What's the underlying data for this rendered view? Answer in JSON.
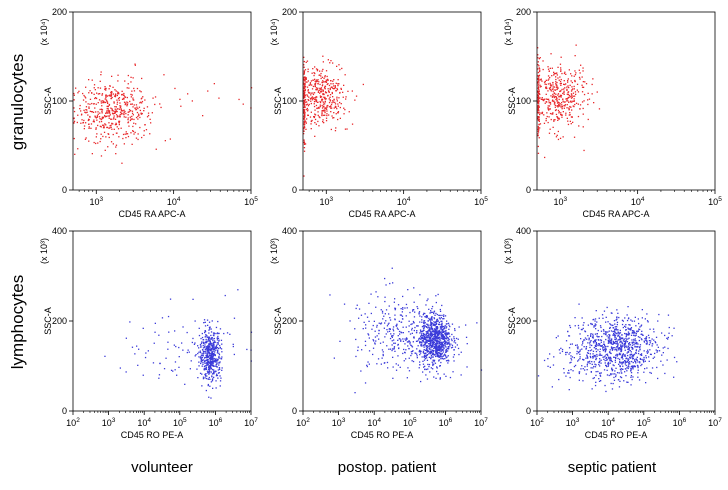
{
  "row_labels": [
    "granulocytes",
    "lymphocytes"
  ],
  "column_labels": [
    "volunteer",
    "postop. patient",
    "septic patient"
  ],
  "colors": {
    "granulocytes": "#e8272a",
    "lymphocytes": "#3b3bd9"
  },
  "chart_data": [
    {
      "type": "scatter",
      "row": 0,
      "col": 0,
      "xlabel": "CD45 RA APC-A",
      "ylabel": "SSC-A",
      "y_multiplier": "(x 10⁴)",
      "x_scale": "log",
      "xlim": [
        500,
        100000
      ],
      "xticks": [
        1000,
        10000,
        100000
      ],
      "ylim": [
        0,
        200
      ],
      "yticks": [
        0,
        100,
        200
      ],
      "color": "#e8272a",
      "clusters": [
        {
          "x_center": 1600,
          "y_center": 90,
          "x_spread_decades": 0.25,
          "y_spread": 17,
          "n": 480
        },
        {
          "x_center": 15000,
          "y_center": 100,
          "x_spread_decades": 0.5,
          "y_spread": 20,
          "n": 22
        }
      ]
    },
    {
      "type": "scatter",
      "row": 0,
      "col": 1,
      "xlabel": "CD45 RA APC-A",
      "ylabel": "SSC-A",
      "y_multiplier": "(x 10⁴)",
      "x_scale": "log",
      "xlim": [
        500,
        100000
      ],
      "xticks": [
        1000,
        10000,
        100000
      ],
      "ylim": [
        0,
        200
      ],
      "yticks": [
        0,
        100,
        200
      ],
      "color": "#e8272a",
      "clusters": [
        {
          "x_center": 800,
          "y_center": 105,
          "x_spread_decades": 0.18,
          "y_spread": 18,
          "n": 420
        },
        {
          "x_center": 510,
          "y_center": 95,
          "x_spread_decades": 0.01,
          "y_spread": 25,
          "n": 70
        }
      ]
    },
    {
      "type": "scatter",
      "row": 0,
      "col": 2,
      "xlabel": "CD45 RA APC-A",
      "ylabel": "SSC-A",
      "y_multiplier": "(x 10⁴)",
      "x_scale": "log",
      "xlim": [
        500,
        100000
      ],
      "xticks": [
        1000,
        10000,
        100000
      ],
      "ylim": [
        0,
        200
      ],
      "yticks": [
        0,
        100,
        200
      ],
      "color": "#e8272a",
      "clusters": [
        {
          "x_center": 900,
          "y_center": 105,
          "x_spread_decades": 0.2,
          "y_spread": 18,
          "n": 420
        },
        {
          "x_center": 510,
          "y_center": 100,
          "x_spread_decades": 0.01,
          "y_spread": 25,
          "n": 70
        }
      ]
    },
    {
      "type": "scatter",
      "row": 1,
      "col": 0,
      "xlabel": "CD45 RO PE-A",
      "ylabel": "SSC-A",
      "y_multiplier": "(x 10³)",
      "x_scale": "log",
      "xlim": [
        100,
        10000000
      ],
      "xticks": [
        100,
        1000,
        10000,
        100000,
        1000000,
        10000000
      ],
      "ylim": [
        0,
        400
      ],
      "yticks": [
        0,
        200,
        400
      ],
      "color": "#3b3bd9",
      "clusters": [
        {
          "x_center": 700000,
          "y_center": 125,
          "x_spread_decades": 0.15,
          "y_spread": 28,
          "n": 480
        },
        {
          "x_center": 100000,
          "y_center": 140,
          "x_spread_decades": 0.8,
          "y_spread": 45,
          "n": 90
        }
      ]
    },
    {
      "type": "scatter",
      "row": 1,
      "col": 1,
      "xlabel": "CD45 RO PE-A",
      "ylabel": "SSC-A",
      "y_multiplier": "(x 10³)",
      "x_scale": "log",
      "xlim": [
        100,
        10000000
      ],
      "xticks": [
        100,
        1000,
        10000,
        100000,
        1000000,
        10000000
      ],
      "ylim": [
        0,
        400
      ],
      "yticks": [
        0,
        200,
        400
      ],
      "color": "#3b3bd9",
      "clusters": [
        {
          "x_center": 500000,
          "y_center": 160,
          "x_spread_decades": 0.22,
          "y_spread": 28,
          "n": 750
        },
        {
          "x_center": 60000,
          "y_center": 170,
          "x_spread_decades": 0.7,
          "y_spread": 45,
          "n": 380
        }
      ]
    },
    {
      "type": "scatter",
      "row": 1,
      "col": 2,
      "xlabel": "CD45 RO PE-A",
      "ylabel": "SSC-A",
      "y_multiplier": "(x 10³)",
      "x_scale": "log",
      "xlim": [
        100,
        10000000
      ],
      "xticks": [
        100,
        1000,
        10000,
        100000,
        1000000,
        10000000
      ],
      "ylim": [
        0,
        400
      ],
      "yticks": [
        0,
        200,
        400
      ],
      "color": "#3b3bd9",
      "clusters": [
        {
          "x_center": 20000,
          "y_center": 140,
          "x_spread_decades": 0.55,
          "y_spread": 35,
          "n": 850
        },
        {
          "x_center": 1000,
          "y_center": 120,
          "x_spread_decades": 0.4,
          "y_spread": 35,
          "n": 90
        }
      ]
    }
  ]
}
